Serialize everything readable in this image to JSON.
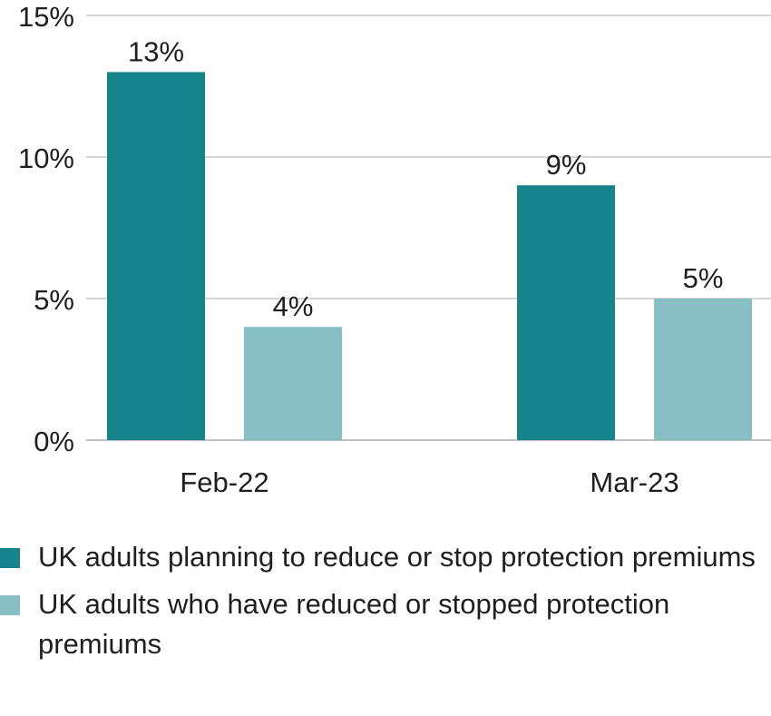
{
  "chart_data": {
    "type": "bar",
    "categories": [
      "Feb-22",
      "Mar-23"
    ],
    "series": [
      {
        "name": "UK adults planning to reduce or stop protection premiums",
        "values": [
          13,
          9
        ],
        "labels": [
          "13%",
          "9%"
        ],
        "color": "#16828a"
      },
      {
        "name": "UK adults who have reduced or stopped protection premiums",
        "values": [
          4,
          5
        ],
        "labels": [
          "4%",
          "5%"
        ],
        "color": "#88bfc5"
      }
    ],
    "ylim": [
      0,
      15
    ],
    "yticks": [
      0,
      5,
      10,
      15
    ],
    "ytick_labels": [
      "0%",
      "5%",
      "10%",
      "15%"
    ],
    "grid": true,
    "legend": "bottom"
  }
}
